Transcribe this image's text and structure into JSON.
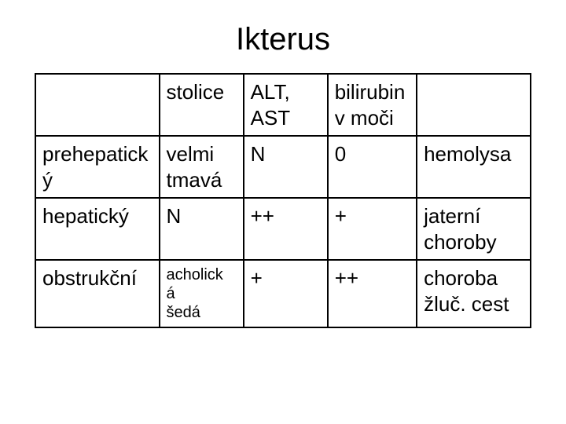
{
  "title": "Ikterus",
  "table": {
    "type": "table",
    "border_color": "#000000",
    "background_color": "#ffffff",
    "text_color": "#000000",
    "title_fontsize": 40,
    "cell_fontsize": 26,
    "small_fontsize": 20,
    "column_widths_pct": [
      25,
      17,
      17,
      18,
      23
    ],
    "columns": [
      "",
      "stolice",
      "ALT,\nAST",
      "bilirubin\nv moči",
      ""
    ],
    "rows": [
      {
        "label": "prehepatick\ný",
        "stolice": "velmi\ntmavá",
        "alt_ast": "N",
        "bilirubin": "0",
        "note": "hemolysa"
      },
      {
        "label": "hepatický",
        "stolice": "N",
        "alt_ast": "++",
        "bilirubin": "+",
        "note": "jaterní\nchoroby"
      },
      {
        "label": "obstrukční",
        "stolice": "acholick\ná\nšedá",
        "stolice_small": true,
        "alt_ast": "+",
        "bilirubin": "++",
        "note": "choroba\nžluč. cest"
      }
    ]
  }
}
